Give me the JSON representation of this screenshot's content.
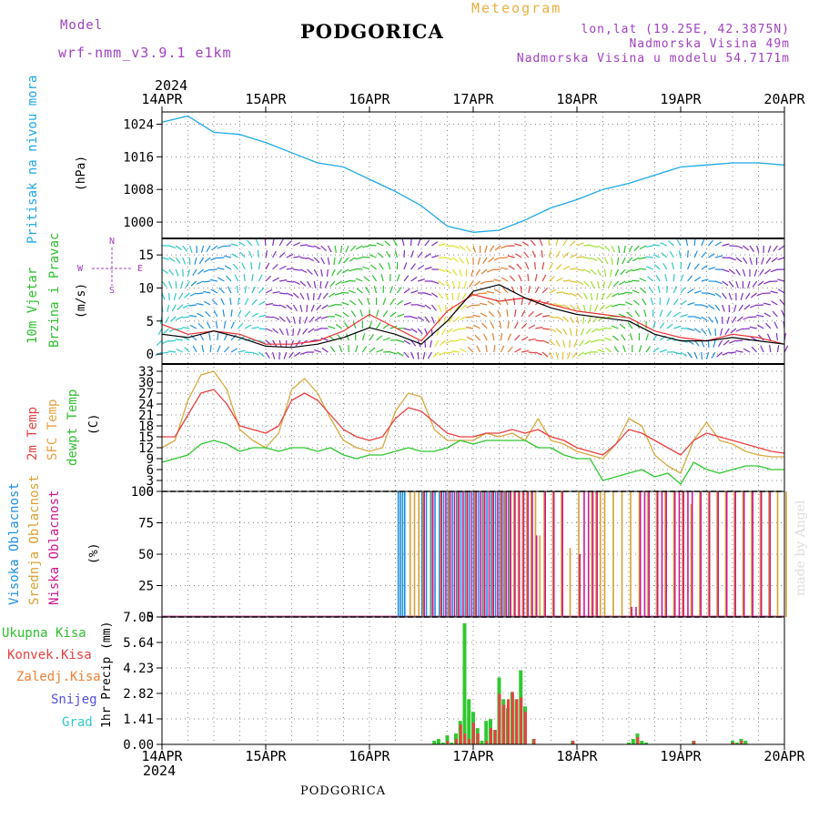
{
  "header": {
    "model_label": "Model",
    "model_name": "wrf-nmm_v3.9.1 e1km",
    "title": "PODGORICA",
    "meteogram_label": "Meteogram",
    "lonlat": "lon,lat (19.25E, 42.3875N)",
    "altitude": "Nadmorska Visina 49m",
    "model_altitude": "Nadmorska Visina u modelu 54.7171m",
    "year_top": "2024",
    "year_bottom": "2024",
    "footer_station": "PODGORICA",
    "credit": "made by Angel"
  },
  "colors": {
    "pressure": "#1ea8e8",
    "wind_speed": "#000000",
    "wind_gust": "#e83030",
    "temp2m": "#e84040",
    "sfc_temp": "#d8a840",
    "dewpt": "#30c830",
    "cloud_high": "#1e90e0",
    "cloud_mid": "#d8a030",
    "cloud_low": "#d01890",
    "precip_total": "#30c830",
    "precip_conv": "#e84040",
    "precip_snow": "#5050e0",
    "precip_grad": "#30c8c8",
    "precip_frz": "#f08030",
    "label_purple": "#a040c0",
    "label_orange": "#e8b040"
  },
  "axes": {
    "days": [
      "14APR",
      "15APR",
      "16APR",
      "17APR",
      "18APR",
      "19APR",
      "20APR"
    ]
  },
  "chart_data": [
    {
      "type": "line",
      "panel": "pressure",
      "ylabel": "Pritisak na nivou mora",
      "unit": "(hPa)",
      "ylim": [
        996,
        1027
      ],
      "yticks": [
        1000,
        1008,
        1016,
        1024
      ],
      "x_hours": [
        0,
        6,
        12,
        18,
        24,
        30,
        36,
        42,
        48,
        54,
        60,
        66,
        72,
        78,
        84,
        90,
        96,
        102,
        108,
        114,
        120,
        126,
        132,
        138,
        144
      ],
      "series": [
        {
          "name": "Pritisak na nivou mora",
          "values": [
            1024.5,
            1026.0,
            1022.0,
            1021.5,
            1019.5,
            1017.0,
            1014.5,
            1013.5,
            1010.5,
            1007.5,
            1004.0,
            999.0,
            997.5,
            998.0,
            1000.5,
            1003.5,
            1005.5,
            1008.0,
            1009.5,
            1011.5,
            1013.5,
            1014.0,
            1014.5,
            1014.5,
            1014.0
          ]
        }
      ]
    },
    {
      "type": "line",
      "panel": "wind",
      "ylabel": "10m Vjetar Brzina i Pravac",
      "unit": "(m/s)",
      "compass": [
        "N",
        "S",
        "E",
        "W"
      ],
      "ylim": [
        -1.5,
        17.5
      ],
      "yticks": [
        0,
        5,
        10,
        15
      ],
      "x_hours": [
        0,
        6,
        12,
        18,
        24,
        30,
        36,
        42,
        48,
        54,
        60,
        66,
        72,
        78,
        84,
        90,
        96,
        102,
        108,
        114,
        120,
        126,
        132,
        138,
        144
      ],
      "series": [
        {
          "name": "speed",
          "values": [
            3.0,
            2.5,
            3.5,
            2.5,
            1.2,
            1.0,
            1.5,
            2.5,
            4.0,
            3.0,
            1.5,
            5.0,
            9.5,
            10.5,
            8.5,
            7.0,
            6.0,
            5.5,
            5.0,
            3.0,
            2.0,
            2.0,
            2.5,
            2.0,
            1.5
          ]
        },
        {
          "name": "gust",
          "values": [
            4.5,
            3.0,
            3.5,
            3.0,
            1.5,
            1.5,
            2.0,
            3.5,
            6.0,
            4.0,
            2.0,
            6.5,
            9.0,
            8.0,
            8.5,
            7.5,
            6.5,
            6.0,
            5.5,
            3.5,
            2.5,
            2.0,
            3.0,
            2.5,
            1.5
          ]
        }
      ]
    },
    {
      "type": "line",
      "panel": "temperature",
      "ylabel": "2m Temp / SFC Temp / dewpt Temp",
      "unit": "(C)",
      "ylim": [
        0,
        35
      ],
      "yticks": [
        0,
        3,
        6,
        9,
        12,
        15,
        18,
        21,
        24,
        27,
        30,
        33
      ],
      "x_hours": [
        0,
        3,
        6,
        9,
        12,
        15,
        18,
        21,
        24,
        27,
        30,
        33,
        36,
        39,
        42,
        45,
        48,
        51,
        54,
        57,
        60,
        63,
        66,
        69,
        72,
        75,
        78,
        81,
        84,
        87,
        90,
        93,
        96,
        99,
        102,
        105,
        108,
        111,
        114,
        117,
        120,
        123,
        126,
        129,
        132,
        135,
        138,
        141,
        144
      ],
      "series": [
        {
          "name": "2m Temp",
          "values": [
            15,
            15,
            21,
            27,
            28,
            24,
            18,
            17,
            16,
            18,
            25,
            27,
            25,
            21,
            17,
            15,
            14,
            15,
            20,
            23,
            22,
            19,
            16,
            15,
            15,
            16,
            16,
            17,
            16,
            17,
            15,
            14,
            12,
            11,
            10,
            13,
            17,
            16,
            14,
            12,
            10,
            14,
            16,
            15,
            14,
            13,
            12,
            11,
            10.5
          ]
        },
        {
          "name": "SFC Temp",
          "values": [
            12,
            14,
            25,
            32,
            33,
            28,
            17,
            14,
            12,
            16,
            28,
            31,
            27,
            20,
            14,
            12,
            11,
            12,
            22,
            27,
            26,
            17,
            14,
            14,
            14,
            16,
            15,
            16,
            14,
            20,
            14,
            13,
            11,
            10,
            9,
            13,
            20,
            18,
            10,
            7,
            5,
            14,
            19,
            14,
            13,
            11,
            10,
            9.5,
            9.5
          ]
        },
        {
          "name": "dewpt Temp",
          "values": [
            8,
            9,
            10,
            13,
            14,
            13,
            11,
            12,
            12,
            11,
            12,
            12,
            11,
            12,
            10,
            9,
            10,
            10,
            11,
            12,
            11,
            11,
            12,
            14,
            13,
            14,
            14,
            14,
            14,
            12,
            12,
            10,
            9,
            9,
            3,
            4,
            5,
            6,
            4,
            5,
            2,
            8,
            6,
            5,
            6,
            7,
            7,
            6,
            6
          ]
        }
      ]
    },
    {
      "type": "bar",
      "panel": "cloud",
      "ylabel": "Visoka / Srednja / Niska Oblacnost",
      "unit": "(%)",
      "ylim": [
        0,
        100
      ],
      "yticks": [
        0,
        25,
        50,
        75,
        100
      ],
      "series": [
        {
          "name": "Visoka Oblacnost",
          "hours": [
            54.5,
            55,
            55.5,
            56,
            60,
            61,
            62,
            63,
            64,
            65,
            66,
            67,
            68,
            69,
            70,
            71,
            72,
            73,
            74,
            75,
            76,
            77,
            78,
            79,
            80
          ],
          "values": [
            100,
            100,
            100,
            100,
            100,
            100,
            100,
            100,
            100,
            100,
            100,
            100,
            100,
            100,
            100,
            100,
            100,
            100,
            100,
            100,
            100,
            100,
            100,
            100,
            100
          ]
        },
        {
          "name": "Srednja Oblacnost",
          "hours": [
            57,
            58,
            59,
            60,
            62,
            64,
            66,
            68,
            70,
            72,
            74,
            76,
            78,
            79,
            80,
            81,
            82,
            83,
            84,
            85,
            86,
            87,
            88,
            90,
            92,
            94,
            96,
            99,
            100,
            101,
            102,
            104,
            106,
            108,
            110,
            112,
            114,
            116,
            118,
            120,
            122,
            124,
            126,
            128,
            130,
            132,
            134,
            136,
            138,
            140,
            142,
            144
          ],
          "values": [
            100,
            100,
            100,
            100,
            100,
            100,
            100,
            100,
            100,
            100,
            100,
            100,
            100,
            100,
            100,
            100,
            100,
            100,
            100,
            100,
            100,
            65,
            100,
            100,
            100,
            55,
            100,
            100,
            100,
            100,
            100,
            100,
            100,
            100,
            100,
            100,
            100,
            100,
            100,
            100,
            90,
            100,
            100,
            100,
            100,
            100,
            100,
            100,
            100,
            100,
            100,
            100
          ]
        },
        {
          "name": "Niska Oblacnost",
          "hours": [
            60,
            62,
            64,
            65,
            66,
            67,
            68,
            69,
            70,
            71,
            72,
            73,
            74,
            75,
            76,
            77,
            78,
            79,
            80,
            81,
            82,
            83,
            84,
            85,
            86,
            88,
            90,
            92,
            96,
            97,
            98,
            99,
            100,
            108,
            109,
            110,
            111,
            112,
            114,
            115,
            116,
            118,
            119,
            120,
            121,
            122,
            124,
            126,
            128,
            130,
            132,
            134,
            136,
            138,
            140
          ],
          "values": [
            100,
            100,
            100,
            100,
            100,
            100,
            100,
            100,
            100,
            100,
            100,
            100,
            100,
            100,
            100,
            100,
            100,
            100,
            100,
            100,
            100,
            100,
            100,
            100,
            65,
            100,
            100,
            100,
            50,
            100,
            100,
            100,
            100,
            8,
            8,
            100,
            100,
            100,
            100,
            100,
            100,
            100,
            100,
            100,
            100,
            100,
            100,
            100,
            100,
            100,
            100,
            100,
            100,
            100,
            100
          ]
        }
      ]
    },
    {
      "type": "bar",
      "panel": "precip",
      "ylabel": "1hr Precip",
      "unit": "(mm)",
      "ylim": [
        0,
        7.05
      ],
      "yticks": [
        0,
        1.41,
        2.82,
        4.23,
        5.64,
        7.05
      ],
      "legend": [
        "Ukupna Kisa",
        "Konvek.Kisa",
        "Zaledj.Kisa",
        "Snijeg",
        "Grad"
      ],
      "series": [
        {
          "name": "Ukupna Kisa",
          "hours": [
            63,
            64,
            65,
            66,
            67,
            68,
            69,
            70,
            71,
            72,
            73,
            74,
            75,
            76,
            77,
            78,
            79,
            80,
            81,
            82,
            83,
            84,
            86,
            95,
            108,
            109,
            110,
            111,
            112,
            123,
            132,
            133,
            134,
            135
          ],
          "values": [
            0.2,
            0.3,
            0.1,
            0.5,
            0.1,
            0.6,
            1.3,
            6.7,
            2.5,
            1.8,
            0.9,
            0.2,
            1.3,
            1.4,
            0.8,
            3.7,
            2.5,
            2.0,
            2.9,
            2.5,
            4.1,
            2.1,
            0.3,
            0.2,
            0.1,
            0.3,
            0.6,
            0.2,
            0.1,
            0.2,
            0.2,
            0.1,
            0.3,
            0.2
          ]
        },
        {
          "name": "Konvek.Kisa",
          "hours": [
            66,
            68,
            69,
            70,
            71,
            72,
            73,
            75,
            76,
            77,
            78,
            79,
            80,
            81,
            82,
            83,
            84,
            86,
            95,
            110,
            123,
            132,
            134
          ],
          "values": [
            0.2,
            0.3,
            1.1,
            0.6,
            0.3,
            1.2,
            0.6,
            0.2,
            0.9,
            0.8,
            2.8,
            2.2,
            2.5,
            2.9,
            2.5,
            2.6,
            1.8,
            0.3,
            0.2,
            0.4,
            0.2,
            0.1,
            0.2
          ]
        }
      ]
    }
  ]
}
